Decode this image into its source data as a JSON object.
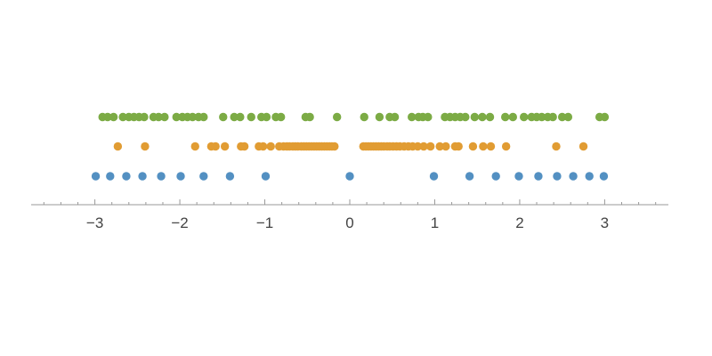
{
  "chart_data": {
    "type": "scatter",
    "title": "",
    "xlabel": "",
    "ylabel": "",
    "xlim": [
      -3.75,
      3.75
    ],
    "grid": false,
    "legend": "none",
    "axis": {
      "major_ticks": [
        -3,
        -2,
        -1,
        0,
        1,
        2,
        3
      ],
      "major_tick_labels": [
        "−3",
        "−2",
        "−1",
        "0",
        "1",
        "2",
        "3"
      ],
      "minor_ticks": [
        -3.6,
        -3.4,
        -3.2,
        -2.8,
        -2.6,
        -2.4,
        -2.2,
        -1.8,
        -1.6,
        -1.4,
        -1.2,
        -0.8,
        -0.6,
        -0.4,
        -0.2,
        0.2,
        0.4,
        0.6,
        0.8,
        1.2,
        1.4,
        1.6,
        1.8,
        2.2,
        2.4,
        2.6,
        2.8,
        3.2,
        3.4,
        3.6
      ]
    },
    "series": [
      {
        "level": 1,
        "color": "#5390c2",
        "x": [
          -2.99,
          -2.82,
          -2.63,
          -2.44,
          -2.22,
          -1.99,
          -1.72,
          -1.41,
          -0.99,
          0.0,
          0.99,
          1.41,
          1.72,
          1.99,
          2.22,
          2.44,
          2.63,
          2.82,
          2.99
        ]
      },
      {
        "level": 2,
        "color": "#e19c33",
        "x": [
          -2.73,
          -2.41,
          -1.82,
          -1.63,
          -1.58,
          -1.47,
          -1.28,
          -1.24,
          -1.07,
          -1.02,
          -0.93,
          -0.83,
          -0.78,
          -0.74,
          -0.71,
          -0.67,
          -0.64,
          -0.61,
          -0.57,
          -0.54,
          -0.51,
          -0.48,
          -0.45,
          -0.42,
          -0.39,
          -0.36,
          -0.33,
          -0.3,
          -0.27,
          -0.24,
          -0.21,
          -0.18,
          0.16,
          0.19,
          0.22,
          0.25,
          0.28,
          0.31,
          0.34,
          0.37,
          0.4,
          0.44,
          0.47,
          0.51,
          0.55,
          0.59,
          0.64,
          0.69,
          0.74,
          0.8,
          0.87,
          0.95,
          1.06,
          1.13,
          1.24,
          1.28,
          1.45,
          1.57,
          1.66,
          1.84,
          2.43,
          2.75
        ]
      },
      {
        "level": 3,
        "color": "#7cab45",
        "x": [
          -2.91,
          -2.85,
          -2.78,
          -2.67,
          -2.6,
          -2.54,
          -2.48,
          -2.42,
          -2.31,
          -2.25,
          -2.18,
          -2.04,
          -1.97,
          -1.91,
          -1.85,
          -1.78,
          -1.72,
          -1.49,
          -1.36,
          -1.29,
          -1.16,
          -1.04,
          -0.98,
          -0.87,
          -0.81,
          -0.52,
          -0.47,
          -0.15,
          0.17,
          0.35,
          0.47,
          0.53,
          0.73,
          0.81,
          0.86,
          0.92,
          1.12,
          1.18,
          1.24,
          1.3,
          1.36,
          1.47,
          1.56,
          1.65,
          1.83,
          1.92,
          2.05,
          2.14,
          2.2,
          2.26,
          2.33,
          2.39,
          2.5,
          2.57,
          2.94,
          3.0
        ]
      }
    ]
  }
}
